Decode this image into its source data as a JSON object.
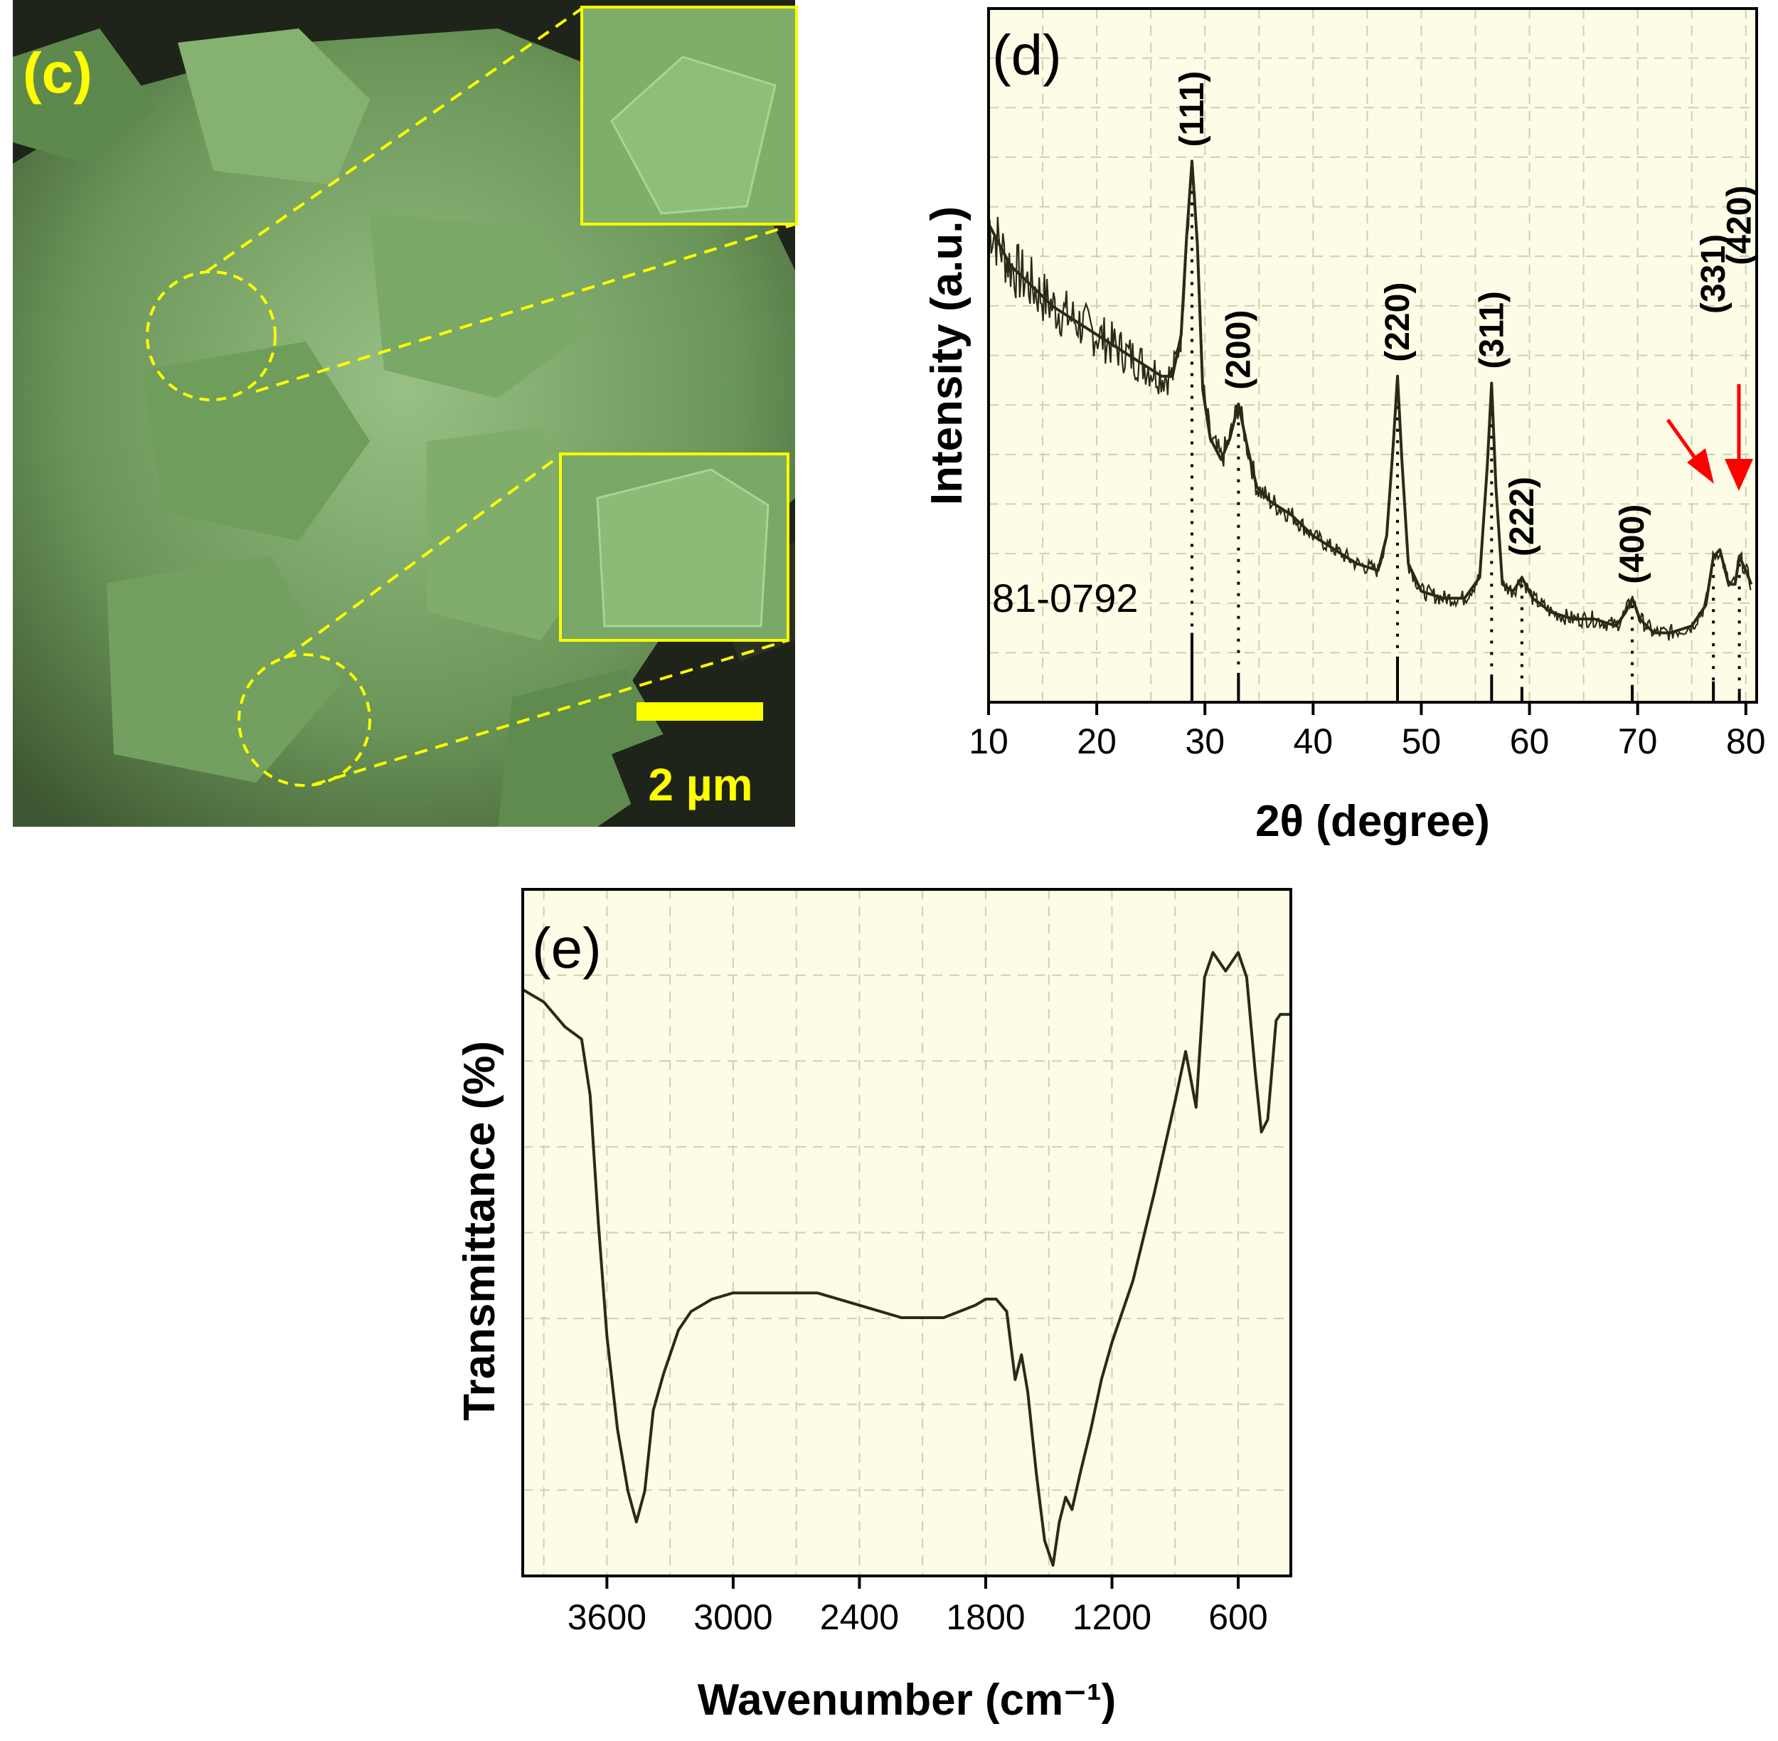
{
  "sem_panel": {
    "label": "(c)",
    "scale_bar": "2 µm",
    "colors": {
      "annotation": "#ffff00",
      "tint": "#7fae6a",
      "background": "#1a1a14"
    }
  },
  "chart_data": [
    {
      "type": "line",
      "panel_label": "(d)",
      "xlabel": "2θ (degree)",
      "ylabel": "Intensity (a.u.)",
      "xlim": [
        10,
        81
      ],
      "ylim": [
        0,
        1
      ],
      "x_ticks": [
        10,
        20,
        30,
        40,
        50,
        60,
        70,
        80
      ],
      "grid": true,
      "background": "#fdfce6",
      "line_color": "#2a2a18",
      "reference_label": "81-0792",
      "series": [
        {
          "x": [
            10,
            12,
            14,
            16,
            18,
            20,
            22,
            24,
            26,
            27,
            27.8,
            28.3,
            28.8,
            29.3,
            29.8,
            30.5,
            31.5,
            32.3,
            33.1,
            33.9,
            34.8,
            36,
            38,
            40,
            42,
            44,
            46,
            46.8,
            47.4,
            47.8,
            48.2,
            48.8,
            50,
            52,
            54,
            55.4,
            56.1,
            56.5,
            56.9,
            57.5,
            58.5,
            59.3,
            60.3,
            62,
            64,
            66,
            68,
            68.9,
            69.5,
            70.2,
            71.5,
            73,
            75,
            76.3,
            77,
            77.6,
            78.4,
            79,
            79.4,
            80,
            80.5
          ],
          "y": [
            0.69,
            0.63,
            0.6,
            0.57,
            0.55,
            0.53,
            0.51,
            0.49,
            0.47,
            0.47,
            0.53,
            0.67,
            0.78,
            0.66,
            0.45,
            0.38,
            0.35,
            0.38,
            0.43,
            0.37,
            0.31,
            0.29,
            0.27,
            0.24,
            0.22,
            0.2,
            0.19,
            0.24,
            0.37,
            0.47,
            0.35,
            0.2,
            0.16,
            0.15,
            0.15,
            0.18,
            0.34,
            0.46,
            0.31,
            0.17,
            0.16,
            0.18,
            0.15,
            0.13,
            0.12,
            0.12,
            0.11,
            0.13,
            0.15,
            0.12,
            0.1,
            0.1,
            0.11,
            0.14,
            0.21,
            0.22,
            0.17,
            0.17,
            0.21,
            0.19,
            0.17
          ]
        }
      ],
      "peaks": [
        {
          "label": "(111)",
          "x": 28.8
        },
        {
          "label": "(200)",
          "x": 33.1
        },
        {
          "label": "(220)",
          "x": 47.8
        },
        {
          "label": "(311)",
          "x": 56.5
        },
        {
          "label": "(222)",
          "x": 59.3
        },
        {
          "label": "(400)",
          "x": 69.5
        },
        {
          "label": "(331)",
          "x": 77.0
        },
        {
          "label": "(420)",
          "x": 79.4
        }
      ],
      "reference_lines": [
        {
          "x": 28.8,
          "h": 0.1
        },
        {
          "x": 33.1,
          "h": 0.04
        },
        {
          "x": 47.8,
          "h": 0.065
        },
        {
          "x": 56.5,
          "h": 0.04
        },
        {
          "x": 59.3,
          "h": 0.02
        },
        {
          "x": 69.5,
          "h": 0.025
        },
        {
          "x": 77.0,
          "h": 0.03
        },
        {
          "x": 79.4,
          "h": 0.015
        }
      ],
      "arrow_color": "#ff0000"
    },
    {
      "type": "line",
      "panel_label": "(e)",
      "xlabel": "Wavenumber (cm⁻¹)",
      "ylabel": "Transmittance (%)",
      "xlim": [
        4000,
        350
      ],
      "ylim": [
        0,
        1
      ],
      "x_ticks": [
        3600,
        3000,
        2400,
        1800,
        1200,
        600
      ],
      "grid": true,
      "background": "#fdfce6",
      "line_color": "#2a2a18",
      "series": [
        {
          "x": [
            4000,
            3900,
            3800,
            3720,
            3680,
            3640,
            3600,
            3550,
            3500,
            3460,
            3420,
            3380,
            3330,
            3260,
            3200,
            3100,
            3000,
            2900,
            2800,
            2600,
            2400,
            2200,
            2000,
            1850,
            1800,
            1750,
            1700,
            1660,
            1630,
            1600,
            1560,
            1520,
            1480,
            1450,
            1420,
            1390,
            1350,
            1300,
            1250,
            1200,
            1100,
            1000,
            900,
            850,
            800,
            760,
            720,
            660,
            600,
            560,
            520,
            490,
            460,
            420,
            400,
            380,
            350
          ],
          "y": [
            0.93,
            0.91,
            0.87,
            0.85,
            0.76,
            0.55,
            0.37,
            0.22,
            0.12,
            0.07,
            0.12,
            0.25,
            0.31,
            0.38,
            0.41,
            0.43,
            0.44,
            0.44,
            0.44,
            0.44,
            0.42,
            0.4,
            0.4,
            0.42,
            0.43,
            0.43,
            0.41,
            0.3,
            0.34,
            0.28,
            0.15,
            0.04,
            0.0,
            0.07,
            0.11,
            0.09,
            0.15,
            0.22,
            0.3,
            0.36,
            0.46,
            0.6,
            0.75,
            0.83,
            0.74,
            0.95,
            0.99,
            0.96,
            0.99,
            0.95,
            0.8,
            0.7,
            0.72,
            0.88,
            0.89,
            0.89,
            0.89
          ]
        }
      ]
    }
  ]
}
